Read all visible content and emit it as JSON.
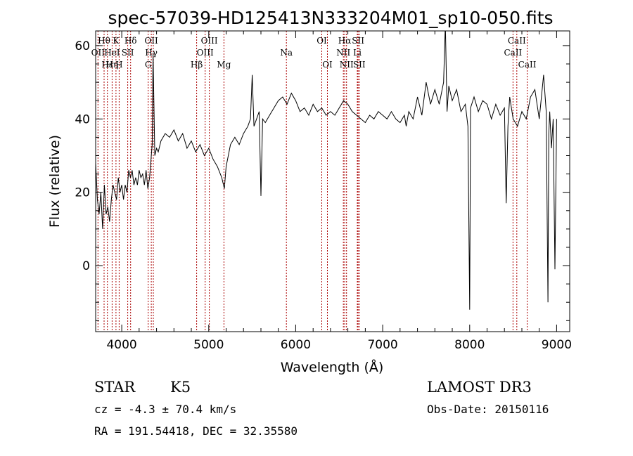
{
  "chart_data": {
    "type": "line",
    "title": "spec-57039-HD125413N333204M01_sp10-050.fits",
    "xlabel": "Wavelength (Å)",
    "ylabel": "Flux (relative)",
    "xlim": [
      3700,
      9150
    ],
    "ylim": [
      -18,
      64
    ],
    "xticks": [
      4000,
      5000,
      6000,
      7000,
      8000,
      9000
    ],
    "yticks": [
      0,
      20,
      40,
      60
    ],
    "series": [
      {
        "x": [
          3700,
          3720,
          3740,
          3760,
          3780,
          3800,
          3820,
          3840,
          3860,
          3880,
          3900,
          3920,
          3940,
          3960,
          3980,
          4000,
          4020,
          4040,
          4060,
          4080,
          4100,
          4120,
          4140,
          4160,
          4180,
          4200,
          4220,
          4240,
          4260,
          4280,
          4300,
          4320,
          4340,
          4350,
          4360,
          4380,
          4400,
          4420,
          4450,
          4500,
          4550,
          4600,
          4650,
          4700,
          4750,
          4800,
          4850,
          4900,
          4950,
          5000,
          5050,
          5100,
          5150,
          5180,
          5200,
          5250,
          5300,
          5350,
          5400,
          5450,
          5480,
          5500,
          5520,
          5550,
          5580,
          5600,
          5620,
          5650,
          5700,
          5750,
          5800,
          5850,
          5900,
          5950,
          6000,
          6050,
          6100,
          6150,
          6200,
          6250,
          6300,
          6350,
          6400,
          6450,
          6500,
          6550,
          6600,
          6650,
          6700,
          6750,
          6800,
          6850,
          6900,
          6950,
          7000,
          7050,
          7100,
          7150,
          7200,
          7250,
          7270,
          7300,
          7350,
          7400,
          7450,
          7500,
          7550,
          7600,
          7650,
          7700,
          7720,
          7740,
          7760,
          7800,
          7850,
          7900,
          7950,
          7980,
          8000,
          8010,
          8050,
          8100,
          8150,
          8200,
          8250,
          8300,
          8350,
          8400,
          8420,
          8440,
          8450,
          8460,
          8500,
          8550,
          8600,
          8650,
          8700,
          8750,
          8800,
          8850,
          8880,
          8900,
          8910,
          8920,
          8940,
          8960,
          8980,
          9000
        ],
        "values": [
          28,
          18,
          14,
          20,
          10,
          22,
          14,
          16,
          12,
          18,
          22,
          20,
          18,
          24,
          20,
          22,
          18,
          22,
          20,
          26,
          24,
          26,
          22,
          24,
          22,
          26,
          24,
          25,
          22,
          26,
          21,
          24,
          30,
          33,
          58,
          30,
          32,
          31,
          34,
          36,
          35,
          37,
          34,
          36,
          32,
          34,
          31,
          33,
          30,
          32,
          29,
          27,
          24,
          21,
          27,
          33,
          35,
          33,
          36,
          38,
          40,
          52,
          38,
          40,
          42,
          19,
          40,
          39,
          41,
          43,
          45,
          46,
          44,
          47,
          45,
          42,
          43,
          41,
          44,
          42,
          43,
          41,
          42,
          41,
          43,
          45,
          44,
          42,
          41,
          40,
          39,
          41,
          40,
          42,
          41,
          40,
          42,
          40,
          39,
          41,
          38,
          42,
          40,
          46,
          41,
          50,
          44,
          48,
          44,
          50,
          66,
          42,
          49,
          45,
          48,
          42,
          44,
          38,
          -12,
          43,
          46,
          42,
          45,
          44,
          40,
          44,
          41,
          43,
          17,
          38,
          42,
          46,
          40,
          38,
          42,
          40,
          46,
          48,
          40,
          52,
          42,
          -10,
          36,
          42,
          32,
          40,
          -1,
          40
        ]
      }
    ],
    "line_labels": [
      {
        "text": "Hθ",
        "x": 3797,
        "row": 0
      },
      {
        "text": "OII",
        "x": 3727,
        "row": 1
      },
      {
        "text": "Hε",
        "x": 3835,
        "row": 2
      },
      {
        "text": "K",
        "x": 3934,
        "row": 0
      },
      {
        "text": "HeI",
        "x": 3889,
        "row": 1
      },
      {
        "text": "H",
        "x": 3970,
        "row": 2
      },
      {
        "text": "Hη",
        "x": 3889,
        "row": 2
      },
      {
        "text": "SII",
        "x": 4069,
        "row": 1
      },
      {
        "text": "Hδ",
        "x": 4102,
        "row": 0
      },
      {
        "text": "OII",
        "x": 4340,
        "row": 0
      },
      {
        "text": "Hγ",
        "x": 4340,
        "row": 1
      },
      {
        "text": "G",
        "x": 4304,
        "row": 2
      },
      {
        "text": "Hβ",
        "x": 4861,
        "row": 2
      },
      {
        "text": "OIII",
        "x": 5007,
        "row": 0
      },
      {
        "text": "OIII",
        "x": 4959,
        "row": 1
      },
      {
        "text": "Mg",
        "x": 5175,
        "row": 2
      },
      {
        "text": "Na",
        "x": 5893,
        "row": 1
      },
      {
        "text": "OI",
        "x": 6300,
        "row": 0
      },
      {
        "text": "OI",
        "x": 6364,
        "row": 2
      },
      {
        "text": "Hα",
        "x": 6563,
        "row": 0
      },
      {
        "text": "SII",
        "x": 6717,
        "row": 0
      },
      {
        "text": "NII",
        "x": 6548,
        "row": 1
      },
      {
        "text": "Li",
        "x": 6708,
        "row": 1
      },
      {
        "text": "NII",
        "x": 6584,
        "row": 2
      },
      {
        "text": "SII",
        "x": 6731,
        "row": 2
      },
      {
        "text": "CaII",
        "x": 8542,
        "row": 0
      },
      {
        "text": "CaII",
        "x": 8498,
        "row": 1
      },
      {
        "text": "CaII",
        "x": 8662,
        "row": 2
      }
    ],
    "line_markers": [
      3727,
      3797,
      3835,
      3889,
      3934,
      3970,
      4069,
      4102,
      4304,
      4340,
      4363,
      4861,
      4959,
      5007,
      5175,
      5893,
      6300,
      6364,
      6548,
      6563,
      6584,
      6708,
      6717,
      6731,
      8498,
      8542,
      8662
    ],
    "grid": false,
    "legend": "none"
  },
  "info": {
    "class": "STAR",
    "subclass": "K5",
    "survey": "LAMOST DR3",
    "cz": "cz = -4.3 ± 70.4 km/s",
    "obs_date": "Obs-Date: 20150116",
    "coords": "RA = 191.54418, DEC =  32.35580"
  },
  "colors": {
    "spectrum": "#000000",
    "markers": "#aa0000",
    "axes": "#000000"
  }
}
